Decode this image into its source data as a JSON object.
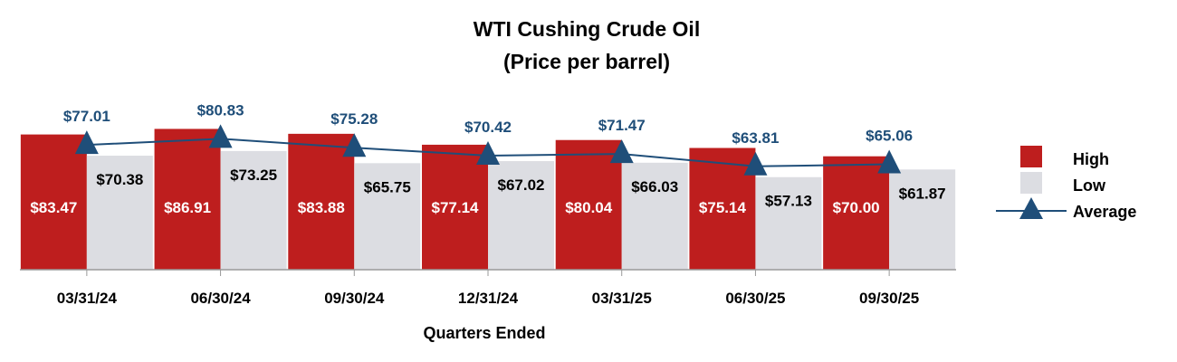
{
  "chart_data": {
    "type": "bar",
    "title": "WTI Cushing Crude Oil",
    "subtitle": "(Price per barrel)",
    "xlabel": "Quarters Ended",
    "ylabel": "",
    "categories": [
      "03/31/24",
      "06/30/24",
      "09/30/24",
      "12/31/24",
      "03/31/25",
      "06/30/25",
      "09/30/25"
    ],
    "series": [
      {
        "name": "High",
        "type": "bar",
        "color": "#be1e1e",
        "values": [
          83.47,
          86.91,
          83.88,
          77.14,
          80.04,
          75.14,
          70.0
        ],
        "labels": [
          "$83.47",
          "$86.91",
          "$83.88",
          "$77.14",
          "$80.04",
          "$75.14",
          "$70.00"
        ]
      },
      {
        "name": "Low",
        "type": "bar",
        "color": "#dcdde2",
        "values": [
          70.38,
          73.25,
          65.75,
          67.02,
          66.03,
          57.13,
          61.87
        ],
        "labels": [
          "$70.38",
          "$73.25",
          "$65.75",
          "$67.02",
          "$66.03",
          "$57.13",
          "$61.87"
        ]
      },
      {
        "name": "Average",
        "type": "line",
        "marker": "triangle",
        "color": "#1f4e79",
        "values": [
          77.01,
          80.83,
          75.28,
          70.42,
          71.47,
          63.81,
          65.06
        ],
        "labels": [
          "$77.01",
          "$80.83",
          "$75.28",
          "$70.42",
          "$71.47",
          "$63.81",
          "$65.06"
        ]
      }
    ],
    "ylim": [
      0,
      100
    ],
    "y_axis_visible": false,
    "grid": false,
    "legend": "right"
  }
}
